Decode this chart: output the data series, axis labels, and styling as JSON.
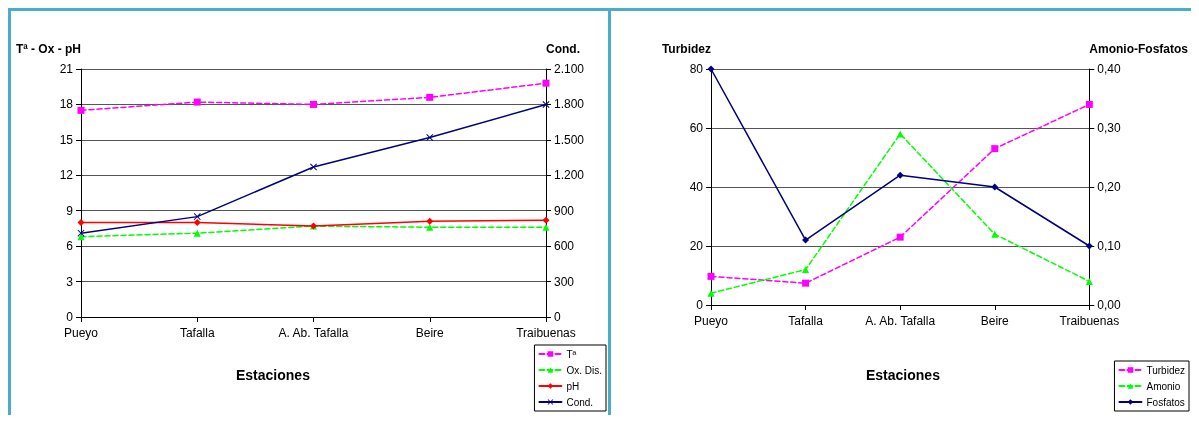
{
  "chart_data": [
    {
      "type": "line",
      "ylabel": "Tª - Ox - pH",
      "y2label": "Cond.",
      "xlabel": "Estaciones",
      "categories": [
        "Pueyo",
        "Tafalla",
        "A. Ab. Tafalla",
        "Beire",
        "Traibuenas"
      ],
      "ylim": [
        0,
        21
      ],
      "yticks": [
        0,
        3,
        6,
        9,
        12,
        15,
        18,
        21
      ],
      "y2lim": [
        0,
        2100
      ],
      "y2ticks": [
        {
          "value": 0,
          "label": "0"
        },
        {
          "value": 300,
          "label": "300"
        },
        {
          "value": 600,
          "label": "600"
        },
        {
          "value": 900,
          "label": "900"
        },
        {
          "value": 1200,
          "label": "1.200"
        },
        {
          "value": 1500,
          "label": "1.500"
        },
        {
          "value": 1800,
          "label": "1.800"
        },
        {
          "value": 2100,
          "label": "2.100"
        }
      ],
      "grid": "y",
      "legend": "bottom right",
      "series": [
        {
          "name": "Tª",
          "color": "#ff00ff",
          "marker": "square",
          "line_style": "dashed",
          "values": [
            17.5,
            18.2,
            18.0,
            18.6,
            19.8
          ]
        },
        {
          "name": "Ox. Dis.",
          "color": "#00ff00",
          "marker": "triangle",
          "line_style": "dashed",
          "values": [
            6.8,
            7.1,
            7.7,
            7.6,
            7.6
          ]
        },
        {
          "name": "pH",
          "color": "#ff0000",
          "marker": "diamond",
          "line_style": "solid",
          "values": [
            8.0,
            8.0,
            7.7,
            8.1,
            8.2
          ]
        },
        {
          "name": "Cond.",
          "color": "#000080",
          "marker": "cross",
          "line_style": "solid",
          "axis": "y2",
          "values": [
            710,
            850,
            1270,
            1520,
            1800
          ]
        }
      ]
    },
    {
      "type": "line",
      "ylabel": "Turbidez",
      "y2label": "Amonio-Fosfatos",
      "xlabel": "Estaciones",
      "categories": [
        "Pueyo",
        "Tafalla",
        "A. Ab. Tafalla",
        "Beire",
        "Traibuenas"
      ],
      "ylim": [
        0,
        80
      ],
      "yticks": [
        0,
        20,
        40,
        60,
        80
      ],
      "y2lim": [
        0,
        0.4
      ],
      "y2ticks": [
        {
          "value": 0,
          "label": "0,00"
        },
        {
          "value": 0.1,
          "label": "0,10"
        },
        {
          "value": 0.2,
          "label": "0,20"
        },
        {
          "value": 0.3,
          "label": "0,30"
        },
        {
          "value": 0.4,
          "label": "0,40"
        }
      ],
      "grid": "y",
      "legend": "bottom right",
      "series": [
        {
          "name": "Turbidez",
          "color": "#ff00ff",
          "marker": "square",
          "line_style": "dashed",
          "values": [
            9.7,
            7.4,
            23,
            53,
            68
          ]
        },
        {
          "name": "Amonio",
          "color": "#00ff00",
          "marker": "triangle",
          "line_style": "dashed",
          "axis": "y2",
          "values": [
            0.02,
            0.06,
            0.29,
            0.12,
            0.04
          ]
        },
        {
          "name": "Fosfatos",
          "color": "#000080",
          "marker": "diamond",
          "line_style": "solid",
          "axis": "y2",
          "values": [
            0.4,
            0.11,
            0.22,
            0.2,
            0.1
          ]
        }
      ]
    }
  ]
}
